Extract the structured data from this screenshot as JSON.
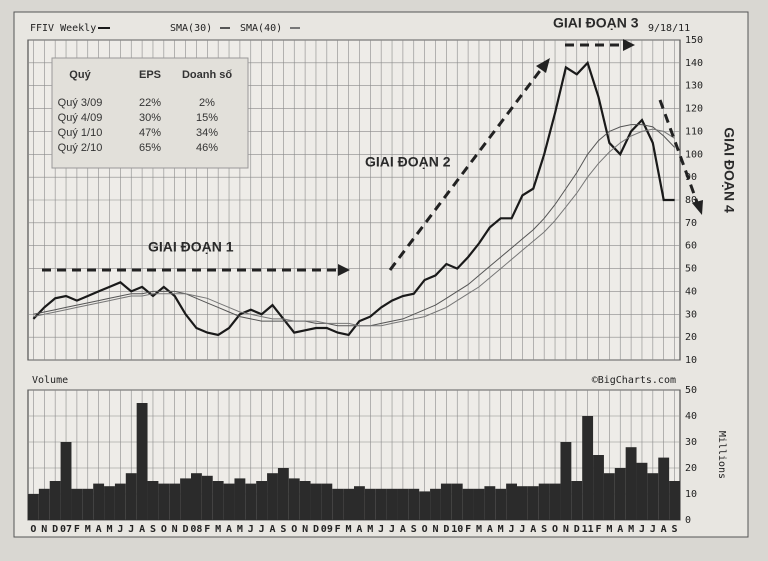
{
  "chart_data": {
    "type": "stock",
    "title": "FFIV Weekly",
    "date": "9/18/11",
    "source": "©BigCharts.com",
    "volume_label": "Volume",
    "volume_unit": "Millions",
    "categories": [
      "O",
      "N",
      "D",
      "07",
      "F",
      "M",
      "A",
      "M",
      "J",
      "J",
      "A",
      "S",
      "O",
      "N",
      "D",
      "08",
      "F",
      "M",
      "A",
      "M",
      "J",
      "J",
      "A",
      "S",
      "O",
      "N",
      "D",
      "09",
      "F",
      "M",
      "A",
      "M",
      "J",
      "J",
      "A",
      "S",
      "O",
      "N",
      "D",
      "10",
      "F",
      "M",
      "A",
      "M",
      "J",
      "J",
      "A",
      "S",
      "O",
      "N",
      "D",
      "11",
      "F",
      "M",
      "A",
      "M",
      "J",
      "J",
      "A",
      "S"
    ],
    "series": [
      {
        "name": "FFIV Weekly",
        "color": "#1a1a1a",
        "values": [
          28,
          33,
          37,
          38,
          36,
          38,
          40,
          42,
          44,
          40,
          42,
          38,
          42,
          38,
          30,
          24,
          22,
          21,
          24,
          30,
          32,
          30,
          34,
          28,
          22,
          23,
          24,
          24,
          22,
          21,
          27,
          29,
          33,
          36,
          38,
          39,
          45,
          47,
          52,
          50,
          55,
          61,
          68,
          72,
          72,
          82,
          85,
          100,
          118,
          138,
          135,
          140,
          125,
          105,
          100,
          110,
          115,
          105,
          80,
          80
        ]
      },
      {
        "name": "SMA(30)",
        "color": "#555555",
        "values": [
          30,
          31,
          32,
          33,
          34,
          35,
          36,
          37,
          38,
          39,
          39,
          40,
          40,
          40,
          39,
          37,
          35,
          33,
          31,
          29,
          28,
          27,
          27,
          27,
          27,
          27,
          26,
          26,
          25,
          25,
          25,
          25,
          26,
          27,
          28,
          30,
          32,
          34,
          37,
          40,
          43,
          47,
          51,
          55,
          59,
          63,
          67,
          72,
          78,
          85,
          92,
          100,
          106,
          110,
          112,
          113,
          113,
          112,
          108,
          103
        ]
      },
      {
        "name": "SMA(40)",
        "color": "#777777",
        "values": [
          29,
          30,
          31,
          32,
          33,
          34,
          35,
          36,
          37,
          38,
          38,
          39,
          39,
          39,
          39,
          38,
          37,
          35,
          33,
          31,
          30,
          29,
          28,
          28,
          27,
          27,
          27,
          26,
          26,
          26,
          25,
          25,
          25,
          26,
          27,
          28,
          29,
          31,
          33,
          36,
          39,
          42,
          46,
          50,
          54,
          58,
          62,
          66,
          71,
          77,
          83,
          90,
          96,
          101,
          105,
          108,
          110,
          111,
          110,
          107
        ]
      }
    ],
    "volume": [
      10,
      12,
      15,
      30,
      12,
      12,
      14,
      13,
      14,
      18,
      45,
      15,
      14,
      14,
      16,
      18,
      17,
      15,
      14,
      16,
      14,
      15,
      18,
      20,
      16,
      15,
      14,
      14,
      12,
      12,
      13,
      12,
      12,
      12,
      12,
      12,
      11,
      12,
      14,
      14,
      12,
      12,
      13,
      12,
      14,
      13,
      13,
      14,
      14,
      30,
      15,
      40,
      25,
      18,
      20,
      28,
      22,
      18,
      24,
      15
    ],
    "ylim": [
      10,
      150
    ],
    "yticks": [
      10,
      20,
      30,
      40,
      50,
      60,
      70,
      80,
      90,
      100,
      110,
      120,
      130,
      140,
      150
    ],
    "y2lim": [
      0,
      50
    ],
    "y2ticks": [
      0,
      10,
      20,
      30,
      40,
      50
    ],
    "grid": true,
    "annotations": [
      "GIAI ĐOẠN 1",
      "GIAI ĐOẠN 2",
      "GIAI ĐOẠN 3",
      "GIAI ĐOẠN 4"
    ],
    "table": {
      "header": [
        "Quý",
        "EPS",
        "Doanh số"
      ],
      "rows": [
        [
          "Quý 3/09",
          "22%",
          "2%"
        ],
        [
          "Quý 4/09",
          "30%",
          "15%"
        ],
        [
          "Quý 1/10",
          "47%",
          "34%"
        ],
        [
          "Quý 2/10",
          "65%",
          "46%"
        ]
      ]
    }
  }
}
